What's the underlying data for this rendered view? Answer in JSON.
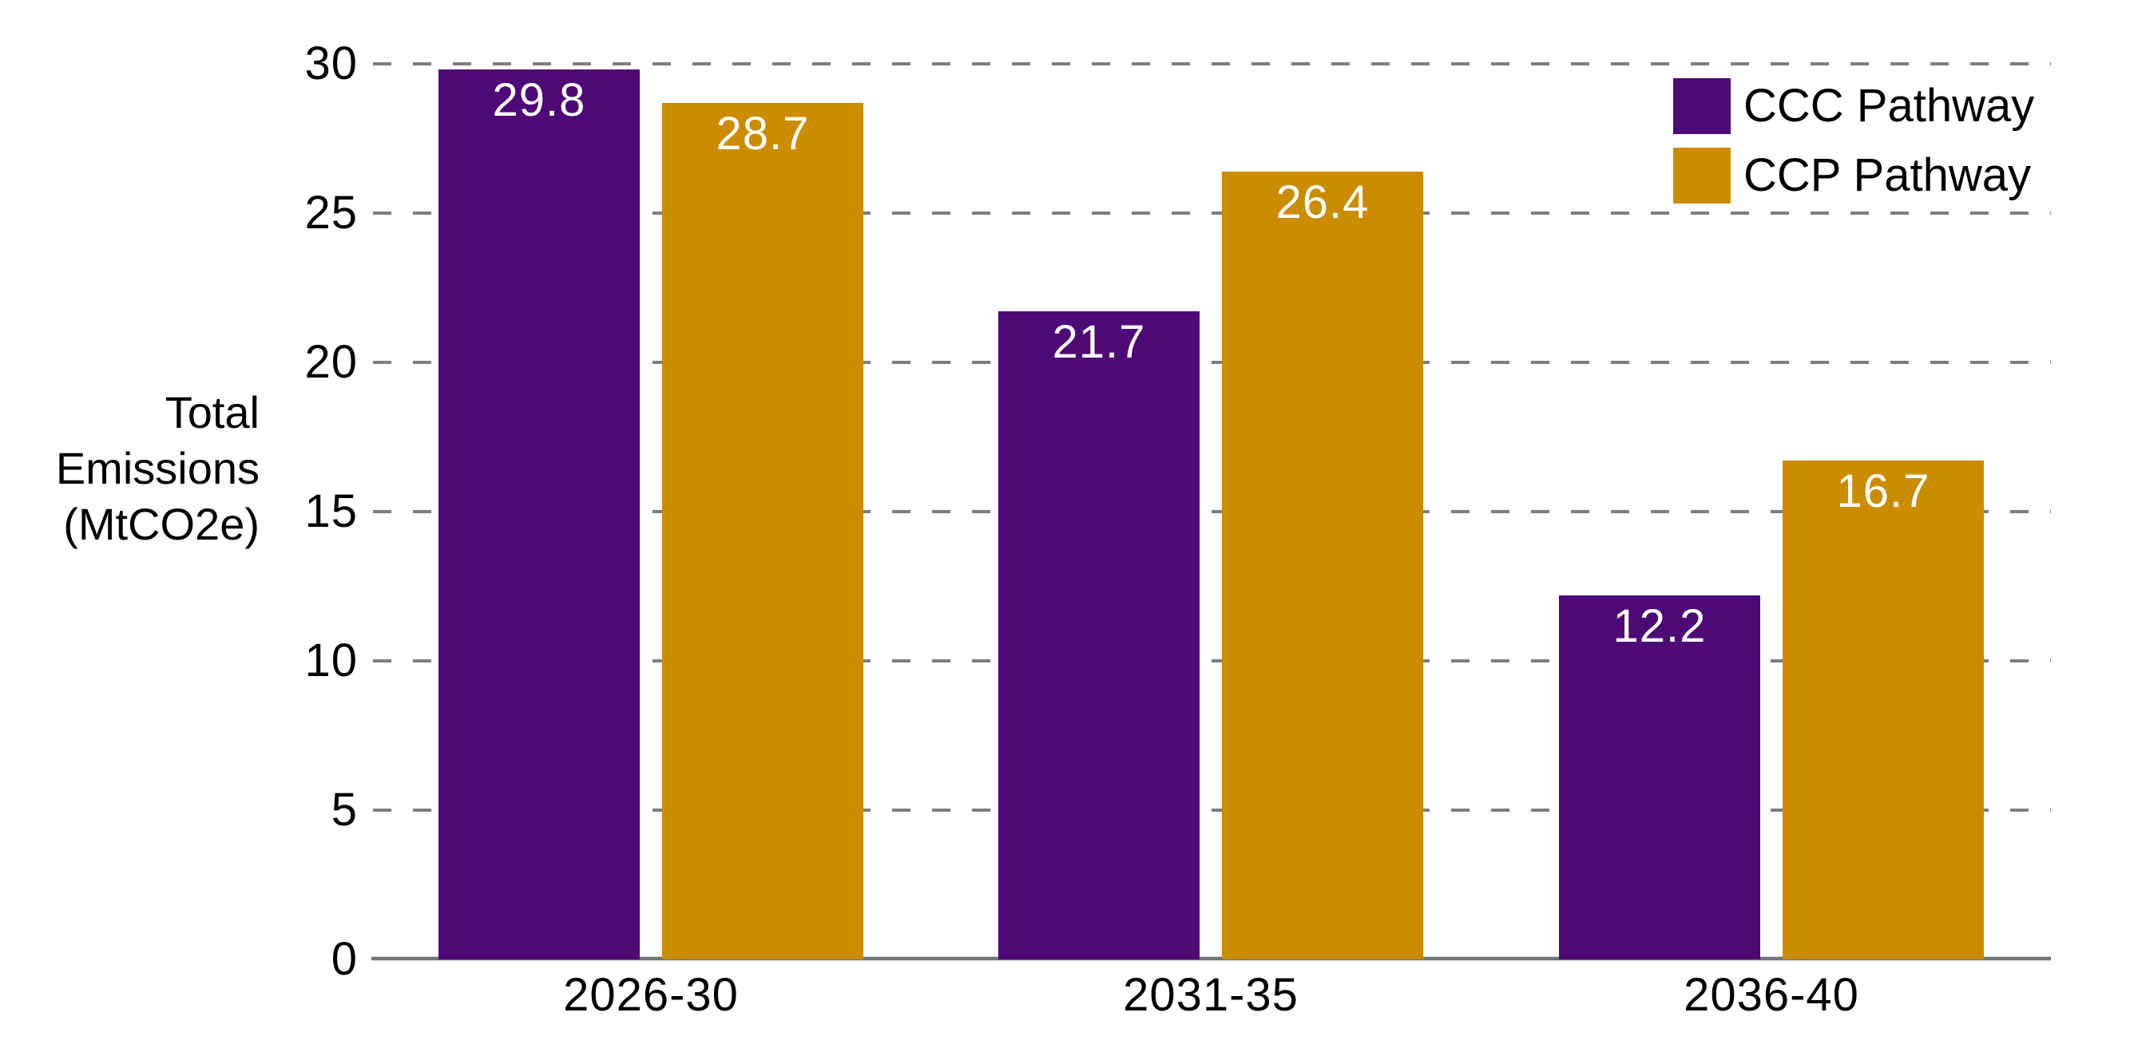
{
  "chart_data": {
    "type": "bar",
    "title": "",
    "categories": [
      "2026-30",
      "2031-35",
      "2036-40"
    ],
    "series": [
      {
        "name": "CCC Pathway",
        "color": "#4d0a77",
        "values": [
          29.8,
          21.7,
          12.2
        ]
      },
      {
        "name": "CCP Pathway",
        "color": "#cc8c00",
        "values": [
          28.7,
          26.4,
          16.7
        ]
      }
    ],
    "bar_value_labels": [
      [
        "29.8",
        "21.7",
        "12.2"
      ],
      [
        "28.7",
        "26.4",
        "16.7"
      ]
    ],
    "xlabel": "",
    "ylabel": "Total Emissions (MtCO2e)",
    "ylabel_lines": [
      "Total",
      "Emissions",
      "(MtCO2e)"
    ],
    "ylim": [
      0,
      30
    ],
    "yticks": [
      0,
      5,
      10,
      15,
      20,
      25,
      30
    ],
    "grid": "horizontal-dashed",
    "legend_position": "top-right",
    "colors": {
      "background": "#ffffff",
      "gridline": "#7a7f83",
      "axis_line": "#6d7377",
      "tick_label": "#000000",
      "value_label": "#ffffff"
    }
  }
}
